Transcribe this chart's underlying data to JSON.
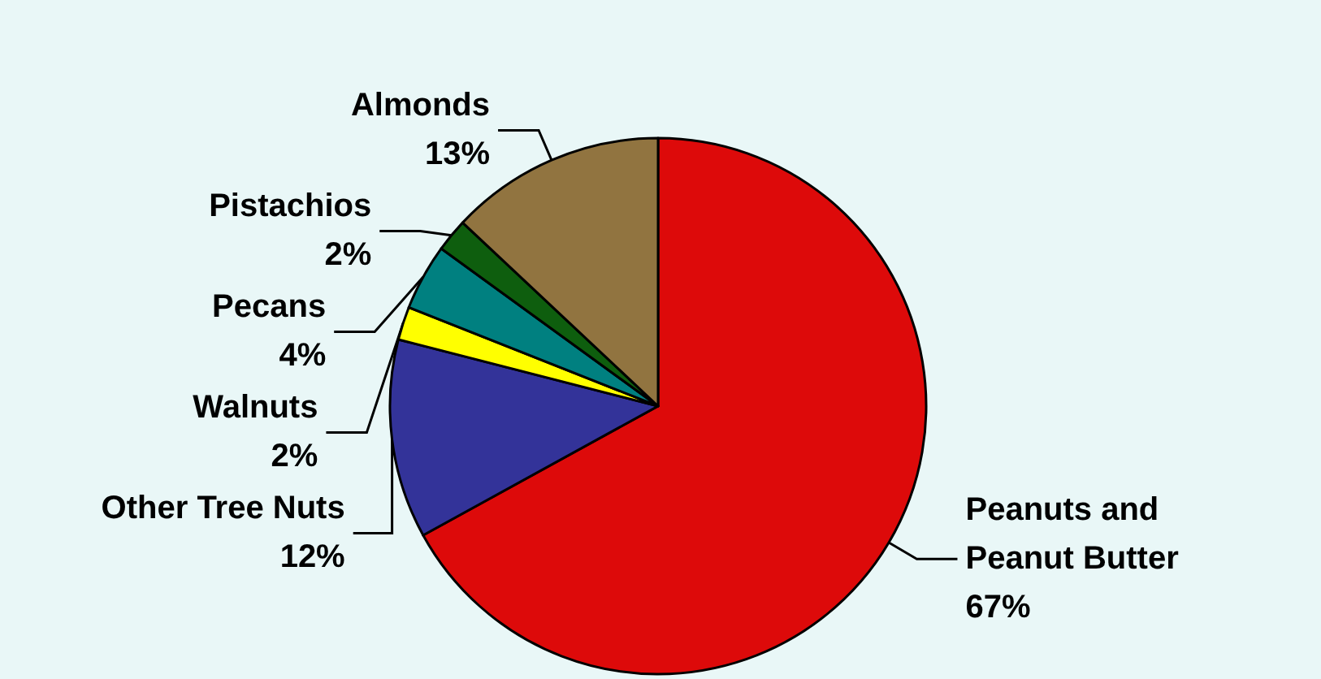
{
  "chart_data": {
    "type": "pie",
    "categories": [
      "Peanuts and Peanut Butter",
      "Other Tree Nuts",
      "Walnuts",
      "Pecans",
      "Pistachios",
      "Almonds"
    ],
    "values": [
      67,
      12,
      2,
      4,
      2,
      13
    ],
    "value_labels": [
      "67%",
      "12%",
      "2%",
      "4%",
      "2%",
      "13%"
    ],
    "colors": [
      "#dd0a0a",
      "#333399",
      "#ffff00",
      "#008080",
      "#0e5e0e",
      "#917440"
    ],
    "legend": false
  }
}
